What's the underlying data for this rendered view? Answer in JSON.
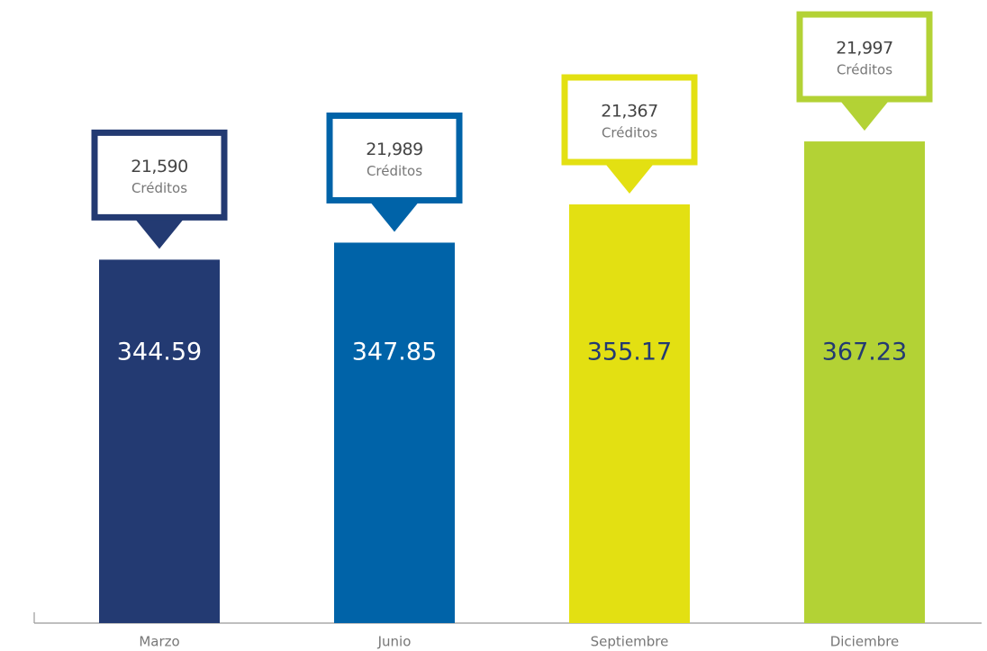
{
  "chart_data": {
    "type": "bar",
    "categories": [
      "Marzo",
      "Junio",
      "Septiembre",
      "Diciembre"
    ],
    "values": [
      344.59,
      347.85,
      355.17,
      367.23
    ],
    "colors": [
      "#233a72",
      "#0063a8",
      "#e3e012",
      "#b3d235"
    ],
    "label_colors": [
      "#ffffff",
      "#ffffff",
      "#233a72",
      "#233a72"
    ],
    "ylim": [
      275,
      375
    ],
    "credits": {
      "name": "Créditos",
      "values": [
        21590,
        21989,
        21367,
        21997
      ],
      "value_labels": [
        "21,590",
        "21,989",
        "21,367",
        "21,997"
      ]
    }
  }
}
